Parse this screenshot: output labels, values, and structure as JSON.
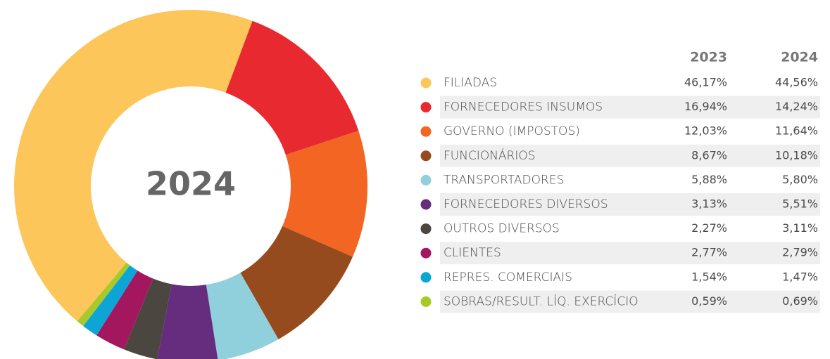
{
  "chart_data": {
    "type": "pie",
    "center_label": "2024",
    "categories": [
      "FILIADAS",
      "FORNECEDORES INSUMOS",
      "GOVERNO (IMPOSTOS)",
      "FUNCIONÁRIOS",
      "TRANSPORTADORES",
      "FORNECEDORES DIVERSOS",
      "OUTROS DIVERSOS",
      "CLIENTES",
      "REPRES. COMERCIAIS",
      "SOBRAS/RESULT. LÍQ. EXERCÍCIO"
    ],
    "colors": [
      "#fcc65a",
      "#e8292f",
      "#f26522",
      "#964b1e",
      "#8fd0dc",
      "#662d7f",
      "#4b4740",
      "#a3175f",
      "#0da5d5",
      "#a9c92a"
    ],
    "series": [
      {
        "name": "2023",
        "values": [
          46.17,
          16.94,
          12.03,
          8.67,
          5.88,
          3.13,
          2.27,
          2.77,
          1.54,
          0.59
        ],
        "value_labels": [
          "46,17%",
          "16,94%",
          "12,03%",
          "8,67%",
          "5,88%",
          "3,13%",
          "2,27%",
          "2,77%",
          "1,54%",
          "0,59%"
        ]
      },
      {
        "name": "2024",
        "values": [
          44.56,
          14.24,
          11.64,
          10.18,
          5.8,
          5.51,
          3.11,
          2.79,
          1.47,
          0.69
        ],
        "value_labels": [
          "44,56%",
          "14,24%",
          "11,64%",
          "10,18%",
          "5,80%",
          "5,51%",
          "3,11%",
          "2,79%",
          "1,47%",
          "0,69%"
        ]
      }
    ]
  }
}
